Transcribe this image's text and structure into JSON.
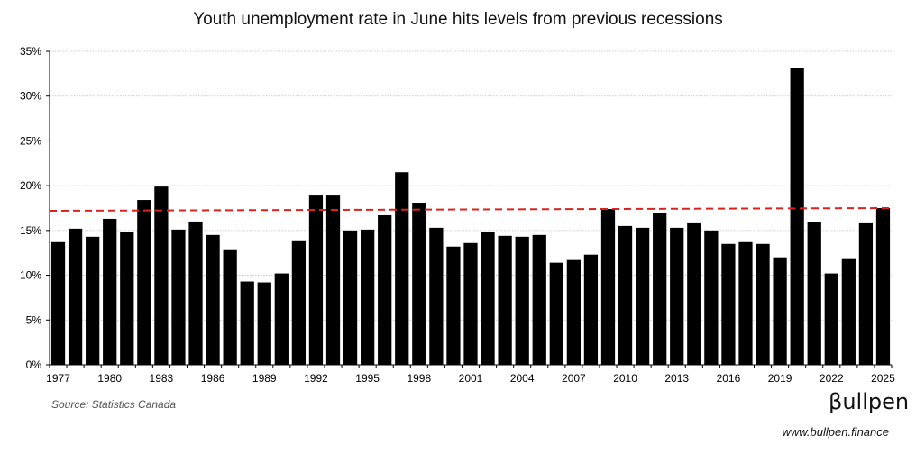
{
  "title": "Youth unemployment rate in June hits levels from previous recessions",
  "source": "Source: Statistics Canada",
  "brand": "βullpen",
  "website": "www.bullpen.finance",
  "colors": {
    "bar": "#000000",
    "trend": "#e0201b",
    "grid": "#bfbfbf",
    "axis": "#000000"
  },
  "chart_data": {
    "type": "bar",
    "title": "Youth unemployment rate in June hits levels from previous recessions",
    "xlabel": "",
    "ylabel": "",
    "ylim": [
      0,
      35
    ],
    "yticks": [
      "0%",
      "5%",
      "10%",
      "15%",
      "20%",
      "25%",
      "30%",
      "35%"
    ],
    "grid": true,
    "xtick_labels": [
      "1977",
      "1980",
      "1983",
      "1986",
      "1989",
      "1992",
      "1995",
      "1998",
      "2001",
      "2004",
      "2007",
      "2010",
      "2013",
      "2016",
      "2019",
      "2022",
      "2025"
    ],
    "categories": [
      "1977",
      "1978",
      "1979",
      "1980",
      "1981",
      "1982",
      "1983",
      "1984",
      "1985",
      "1986",
      "1987",
      "1988",
      "1989",
      "1990",
      "1991",
      "1992",
      "1993",
      "1994",
      "1995",
      "1996",
      "1997",
      "1998",
      "1999",
      "2000",
      "2001",
      "2002",
      "2003",
      "2004",
      "2005",
      "2006",
      "2007",
      "2008",
      "2009",
      "2010",
      "2011",
      "2012",
      "2013",
      "2014",
      "2015",
      "2016",
      "2017",
      "2018",
      "2019",
      "2020",
      "2021",
      "2022",
      "2023",
      "2024",
      "2025"
    ],
    "values": [
      13.7,
      15.2,
      14.3,
      16.3,
      14.8,
      18.4,
      19.9,
      15.1,
      16.0,
      14.5,
      12.9,
      9.3,
      9.2,
      10.2,
      13.9,
      18.9,
      18.9,
      15.0,
      15.1,
      16.7,
      21.5,
      18.1,
      15.3,
      13.2,
      13.6,
      14.8,
      14.4,
      14.3,
      14.5,
      11.4,
      11.7,
      12.3,
      17.4,
      15.5,
      15.3,
      17.0,
      15.3,
      15.8,
      15.0,
      13.5,
      13.7,
      13.5,
      12.0,
      33.1,
      15.9,
      10.2,
      11.9,
      15.8,
      17.5
    ],
    "trend": {
      "type": "linear",
      "style": "dashed",
      "start": 17.2,
      "end": 17.5
    }
  }
}
